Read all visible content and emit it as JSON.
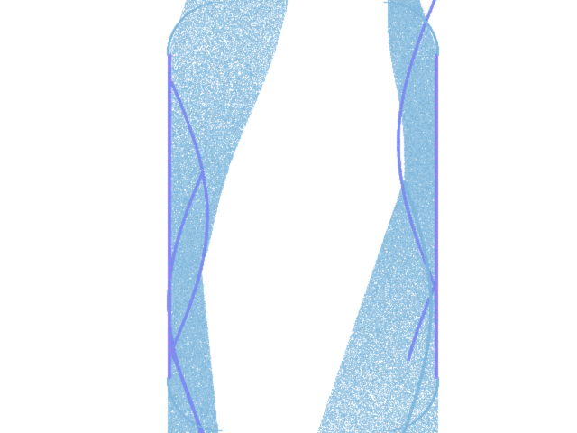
{
  "artwork": {
    "subject": "stippled-ribbon-attractor",
    "palette": {
      "background": "#ffffff",
      "dot_light": "#9fcbe6",
      "dot_mid": "#7fb6dc",
      "edge": "#7b8cf0",
      "edge_accent": "#b27df0"
    }
  }
}
